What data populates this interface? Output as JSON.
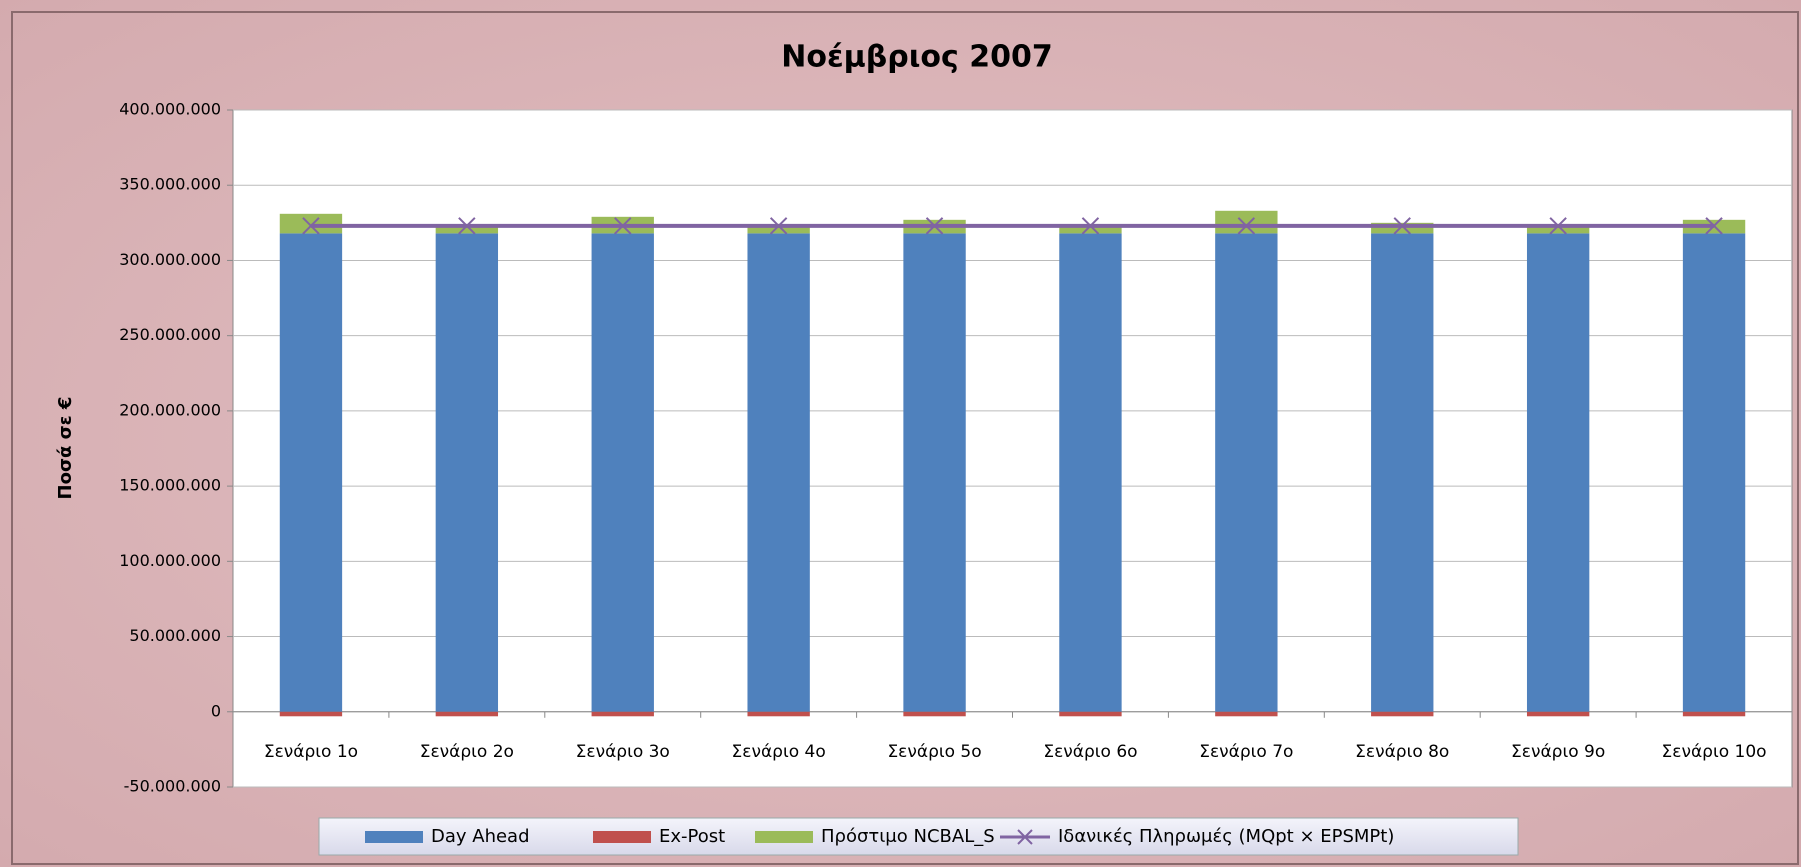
{
  "chart_data": {
    "type": "bar",
    "stacked": true,
    "title": "Νοέμβριος 2007",
    "y_label": "Ποσά σε €",
    "categories": [
      "Σενάριο 1ο",
      "Σενάριο 2ο",
      "Σενάριο 3ο",
      "Σενάριο 4ο",
      "Σενάριο 5ο",
      "Σενάριο 6ο",
      "Σενάριο 7ο",
      "Σενάριο 8ο",
      "Σενάριο 9ο",
      "Σενάριο 10ο"
    ],
    "series": [
      {
        "name": "Day Ahead",
        "type": "bar",
        "color": "#4f81bd",
        "values": [
          318000000,
          318000000,
          318000000,
          318000000,
          318000000,
          318000000,
          318000000,
          318000000,
          318000000,
          318000000
        ]
      },
      {
        "name": "Ex-Post",
        "type": "bar",
        "color": "#c0504d",
        "values": [
          -3000000,
          -3000000,
          -3000000,
          -3000000,
          -3000000,
          -3000000,
          -3000000,
          -3000000,
          -3000000,
          -3000000
        ]
      },
      {
        "name": "Πρόστιμο NCBAL_S",
        "type": "bar",
        "color": "#9bbb59",
        "values": [
          13000000,
          4000000,
          11000000,
          4000000,
          9000000,
          4000000,
          15000000,
          7000000,
          5000000,
          9000000
        ]
      },
      {
        "name": "Ιδανικές Πληρωμές (MQpt × EPSMPt)",
        "type": "line",
        "color": "#8064a2",
        "values": [
          323000000,
          323000000,
          323000000,
          323000000,
          323000000,
          323000000,
          323000000,
          323000000,
          323000000,
          323000000
        ]
      }
    ],
    "ylim": [
      -50000000,
      400000000
    ],
    "yticks": [
      {
        "value": -50000000,
        "label": "-50.000.000"
      },
      0,
      {
        "value": 50000000,
        "label": "50.000.000"
      },
      {
        "value": 100000000,
        "label": "100.000.000"
      },
      {
        "value": 150000000,
        "label": "150.000.000"
      },
      {
        "value": 200000000,
        "label": "200.000.000"
      },
      {
        "value": 250000000,
        "label": "250.000.000"
      },
      {
        "value": 300000000,
        "label": "300.000.000"
      },
      {
        "value": 350000000,
        "label": "350.000.000"
      },
      {
        "value": 400000000,
        "label": "400.000.000"
      }
    ],
    "grid": true,
    "legend": "bottom"
  }
}
